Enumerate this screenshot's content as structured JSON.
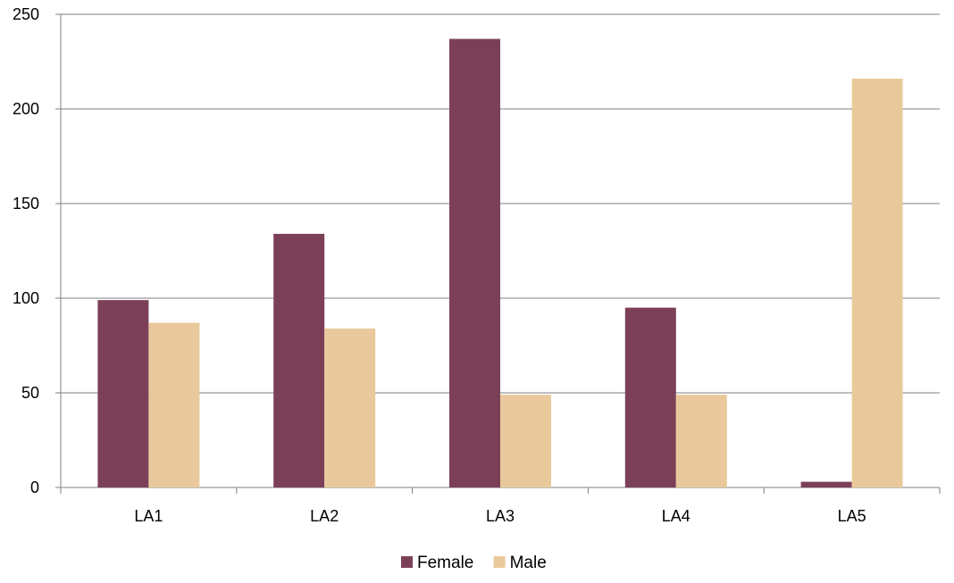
{
  "chart_data": {
    "type": "bar",
    "title": "",
    "xlabel": "",
    "ylabel": "",
    "categories": [
      "LA1",
      "LA2",
      "LA3",
      "LA4",
      "LA5"
    ],
    "series": [
      {
        "name": "Female",
        "color": "#7b4058",
        "values": [
          99,
          134,
          237,
          95,
          3
        ]
      },
      {
        "name": "Male",
        "color": "#e9c99b",
        "values": [
          87,
          84,
          49,
          49,
          216
        ]
      }
    ],
    "ylim": [
      0,
      250
    ],
    "yticks": [
      0,
      50,
      100,
      150,
      200,
      250
    ],
    "grid": true,
    "legend": "bottom-center"
  }
}
